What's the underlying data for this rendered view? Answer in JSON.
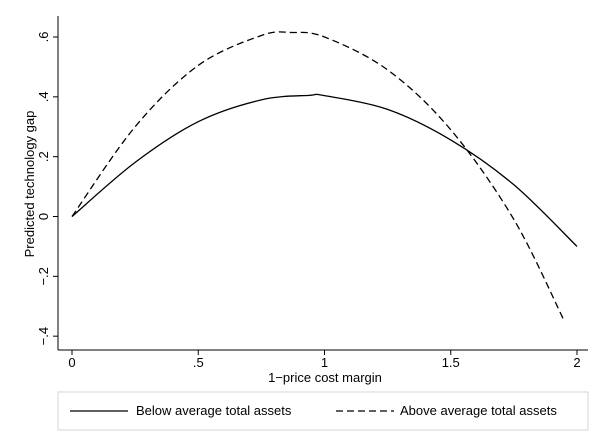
{
  "chart_data": {
    "type": "line",
    "title": "",
    "xlabel": "1−price cost margin",
    "ylabel": "Predicted technology gap",
    "xlim": [
      0,
      2
    ],
    "ylim": [
      -0.4,
      0.6
    ],
    "xticks": [
      {
        "value": 0,
        "label": "0"
      },
      {
        "value": 0.5,
        "label": ".5"
      },
      {
        "value": 1,
        "label": "1"
      },
      {
        "value": 1.5,
        "label": "1.5"
      },
      {
        "value": 2,
        "label": "2"
      }
    ],
    "yticks": [
      {
        "value": -0.4,
        "label": "−.4"
      },
      {
        "value": -0.2,
        "label": "−.2"
      },
      {
        "value": 0,
        "label": "0"
      },
      {
        "value": 0.2,
        "label": ".2"
      },
      {
        "value": 0.4,
        "label": ".4"
      },
      {
        "value": 0.6,
        "label": ".6"
      }
    ],
    "grid": false,
    "legend_position": "bottom",
    "series": [
      {
        "name": "Below average total assets",
        "style": "solid",
        "color": "#000000",
        "points": [
          {
            "x": 0,
            "y": 0.0
          },
          {
            "x": 0.25,
            "y": 0.181
          },
          {
            "x": 0.5,
            "y": 0.317
          },
          {
            "x": 0.75,
            "y": 0.39
          },
          {
            "x": 0.94,
            "y": 0.405
          },
          {
            "x": 1.0,
            "y": 0.404
          },
          {
            "x": 1.25,
            "y": 0.358
          },
          {
            "x": 1.5,
            "y": 0.256
          },
          {
            "x": 1.75,
            "y": 0.106
          },
          {
            "x": 2.0,
            "y": -0.1
          }
        ]
      },
      {
        "name": "Above average total assets",
        "style": "dashed",
        "color": "#000000",
        "points": [
          {
            "x": 0,
            "y": 0.0
          },
          {
            "x": 0.25,
            "y": 0.3
          },
          {
            "x": 0.5,
            "y": 0.505
          },
          {
            "x": 0.75,
            "y": 0.605
          },
          {
            "x": 0.87,
            "y": 0.615
          },
          {
            "x": 1.0,
            "y": 0.6
          },
          {
            "x": 1.25,
            "y": 0.49
          },
          {
            "x": 1.5,
            "y": 0.29
          },
          {
            "x": 1.75,
            "y": -0.01
          },
          {
            "x": 1.95,
            "y": -0.35
          }
        ]
      }
    ]
  }
}
